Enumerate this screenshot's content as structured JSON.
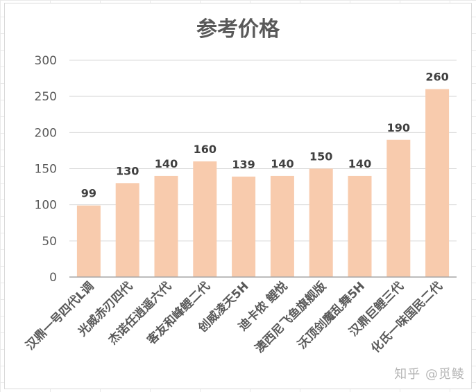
{
  "watermark": "知乎 @觅鲮",
  "chart_data": {
    "type": "bar",
    "title": "参考价格",
    "xlabel": "",
    "ylabel": "",
    "ylim": [
      0,
      300
    ],
    "yticks": [
      0,
      50,
      100,
      150,
      200,
      250,
      300
    ],
    "grid": true,
    "legend": "none",
    "bar_color": "#f8cbad",
    "categories": [
      "汉鼎一号四代L调",
      "光威赤刃四代",
      "杰诺任逍遥六代",
      "客友和峰鲤二代",
      "创威凌天5H",
      "迪卡侬 鲤悦",
      "澳西尼飞鱼旗舰版",
      "沃顶剑魔乱舞5H",
      "汉鼎巨鲤三代",
      "化氏一味国民二代"
    ],
    "values": [
      99,
      130,
      140,
      160,
      139,
      140,
      150,
      140,
      190,
      260
    ]
  }
}
